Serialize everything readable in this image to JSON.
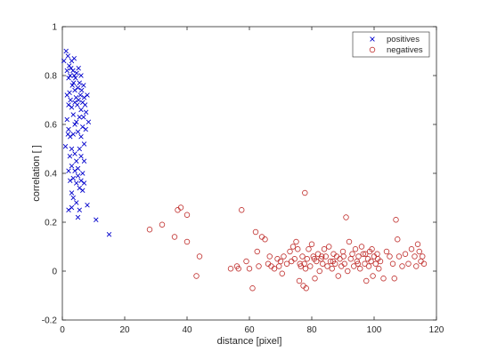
{
  "chart_data": {
    "type": "scatter",
    "xlabel": "distance [pixel]",
    "ylabel": "correlation [ ]",
    "xlim": [
      0,
      120
    ],
    "ylim": [
      -0.2,
      1
    ],
    "x_ticks": [
      "0",
      "20",
      "40",
      "60",
      "80",
      "100",
      "120"
    ],
    "y_ticks": [
      "-0.2",
      "0",
      "0.2",
      "0.4",
      "0.6",
      "0.8",
      "1"
    ],
    "grid": false,
    "legend_position": "top-right",
    "series": [
      {
        "name": "positives",
        "marker": "x",
        "color": "#0000cc",
        "points": [
          [
            0.5,
            0.86
          ],
          [
            1.2,
            0.9
          ],
          [
            1.5,
            0.82
          ],
          [
            1.8,
            0.88
          ],
          [
            2.0,
            0.79
          ],
          [
            2.2,
            0.84
          ],
          [
            2.5,
            0.8
          ],
          [
            2.8,
            0.83
          ],
          [
            3.0,
            0.86
          ],
          [
            3.2,
            0.76
          ],
          [
            3.4,
            0.82
          ],
          [
            3.6,
            0.77
          ],
          [
            3.8,
            0.8
          ],
          [
            4.0,
            0.74
          ],
          [
            4.2,
            0.79
          ],
          [
            4.4,
            0.71
          ],
          [
            4.6,
            0.81
          ],
          [
            4.8,
            0.68
          ],
          [
            5.0,
            0.75
          ],
          [
            5.2,
            0.7
          ],
          [
            5.5,
            0.77
          ],
          [
            5.8,
            0.72
          ],
          [
            6.0,
            0.66
          ],
          [
            6.2,
            0.74
          ],
          [
            6.5,
            0.69
          ],
          [
            6.8,
            0.63
          ],
          [
            7.0,
            0.71
          ],
          [
            7.3,
            0.68
          ],
          [
            7.6,
            0.65
          ],
          [
            8.0,
            0.72
          ],
          [
            8.4,
            0.61
          ],
          [
            2.3,
            0.73
          ],
          [
            2.6,
            0.7
          ],
          [
            3.0,
            0.67
          ],
          [
            3.5,
            0.64
          ],
          [
            4.0,
            0.69
          ],
          [
            4.5,
            0.61
          ],
          [
            5.0,
            0.57
          ],
          [
            5.5,
            0.63
          ],
          [
            6.0,
            0.55
          ],
          [
            6.5,
            0.59
          ],
          [
            7.0,
            0.52
          ],
          [
            1.5,
            0.62
          ],
          [
            2.0,
            0.58
          ],
          [
            2.5,
            0.55
          ],
          [
            3.0,
            0.5
          ],
          [
            3.5,
            0.56
          ],
          [
            4.0,
            0.48
          ],
          [
            4.5,
            0.45
          ],
          [
            5.0,
            0.42
          ],
          [
            5.5,
            0.5
          ],
          [
            6.0,
            0.47
          ],
          [
            6.5,
            0.4
          ],
          [
            7.0,
            0.45
          ],
          [
            1.0,
            0.51
          ],
          [
            1.8,
            0.56
          ],
          [
            2.4,
            0.47
          ],
          [
            3.0,
            0.43
          ],
          [
            3.5,
            0.38
          ],
          [
            4.0,
            0.41
          ],
          [
            4.5,
            0.36
          ],
          [
            5.0,
            0.39
          ],
          [
            5.5,
            0.34
          ],
          [
            6.0,
            0.37
          ],
          [
            6.5,
            0.33
          ],
          [
            7.0,
            0.36
          ],
          [
            2.0,
            0.41
          ],
          [
            2.5,
            0.37
          ],
          [
            3.0,
            0.32
          ],
          [
            3.5,
            0.3
          ],
          [
            4.5,
            0.28
          ],
          [
            5.5,
            0.25
          ],
          [
            2.0,
            0.25
          ],
          [
            3.0,
            0.26
          ],
          [
            5.0,
            0.22
          ],
          [
            8.0,
            0.27
          ],
          [
            10.8,
            0.21
          ],
          [
            15.0,
            0.15
          ],
          [
            1.5,
            0.72
          ],
          [
            2.0,
            0.68
          ],
          [
            4.0,
            0.6
          ],
          [
            6.0,
            0.8
          ],
          [
            7.5,
            0.58
          ],
          [
            3.8,
            0.87
          ],
          [
            5.2,
            0.83
          ],
          [
            6.8,
            0.76
          ]
        ]
      },
      {
        "name": "negatives",
        "marker": "o",
        "color": "#c0302e",
        "points": [
          [
            28.0,
            0.17
          ],
          [
            32.0,
            0.19
          ],
          [
            36.0,
            0.14
          ],
          [
            37.0,
            0.25
          ],
          [
            38.0,
            0.26
          ],
          [
            40.0,
            0.23
          ],
          [
            40.0,
            0.12
          ],
          [
            43.0,
            -0.02
          ],
          [
            44.0,
            0.06
          ],
          [
            54.0,
            0.01
          ],
          [
            56.0,
            0.02
          ],
          [
            56.5,
            0.01
          ],
          [
            57.5,
            0.25
          ],
          [
            59.0,
            0.04
          ],
          [
            61.0,
            -0.07
          ],
          [
            62.0,
            0.16
          ],
          [
            62.5,
            0.08
          ],
          [
            63.0,
            0.02
          ],
          [
            64.0,
            0.14
          ],
          [
            65.0,
            0.13
          ],
          [
            66.0,
            0.03
          ],
          [
            67.0,
            0.02
          ],
          [
            68.0,
            0.01
          ],
          [
            69.0,
            0.05
          ],
          [
            70.0,
            0.04
          ],
          [
            70.5,
            -0.01
          ],
          [
            71.0,
            0.06
          ],
          [
            72.0,
            0.03
          ],
          [
            73.0,
            0.08
          ],
          [
            74.0,
            0.1
          ],
          [
            74.5,
            0.05
          ],
          [
            75.0,
            0.12
          ],
          [
            75.5,
            0.09
          ],
          [
            76.0,
            -0.04
          ],
          [
            76.5,
            0.02
          ],
          [
            77.0,
            0.06
          ],
          [
            77.3,
            -0.06
          ],
          [
            77.6,
            0.03
          ],
          [
            77.8,
            0.32
          ],
          [
            78.0,
            0.01
          ],
          [
            78.2,
            -0.07
          ],
          [
            78.5,
            0.05
          ],
          [
            79.0,
            0.09
          ],
          [
            79.5,
            0.02
          ],
          [
            80.0,
            0.11
          ],
          [
            80.5,
            0.06
          ],
          [
            81.0,
            -0.03
          ],
          [
            81.5,
            0.04
          ],
          [
            82.0,
            0.07
          ],
          [
            82.5,
            0.0
          ],
          [
            83.0,
            0.05
          ],
          [
            83.5,
            0.03
          ],
          [
            84.0,
            0.09
          ],
          [
            84.5,
            0.06
          ],
          [
            85.0,
            0.02
          ],
          [
            85.5,
            0.1
          ],
          [
            86.0,
            0.04
          ],
          [
            86.5,
            0.01
          ],
          [
            87.0,
            0.07
          ],
          [
            87.5,
            0.03
          ],
          [
            88.0,
            0.06
          ],
          [
            88.5,
            -0.02
          ],
          [
            89.0,
            0.05
          ],
          [
            89.5,
            0.02
          ],
          [
            90.0,
            0.08
          ],
          [
            90.5,
            0.03
          ],
          [
            91.0,
            0.22
          ],
          [
            91.5,
            0.0
          ],
          [
            92.0,
            0.12
          ],
          [
            92.5,
            0.05
          ],
          [
            93.0,
            0.07
          ],
          [
            93.5,
            0.02
          ],
          [
            94.0,
            0.09
          ],
          [
            94.5,
            0.04
          ],
          [
            95.0,
            0.06
          ],
          [
            95.5,
            0.01
          ],
          [
            96.0,
            0.1
          ],
          [
            96.5,
            0.07
          ],
          [
            97.0,
            0.03
          ],
          [
            97.5,
            -0.04
          ],
          [
            98.0,
            0.05
          ],
          [
            98.3,
            0.02
          ],
          [
            98.6,
            0.08
          ],
          [
            99.0,
            0.04
          ],
          [
            99.3,
            0.09
          ],
          [
            99.6,
            -0.02
          ],
          [
            100.0,
            0.06
          ],
          [
            100.5,
            0.03
          ],
          [
            101.0,
            0.07
          ],
          [
            101.5,
            0.01
          ],
          [
            102.0,
            0.04
          ],
          [
            103.0,
            -0.03
          ],
          [
            104.0,
            0.08
          ],
          [
            105.0,
            0.06
          ],
          [
            106.0,
            0.03
          ],
          [
            106.5,
            -0.03
          ],
          [
            107.0,
            0.21
          ],
          [
            107.5,
            0.13
          ],
          [
            108.0,
            0.06
          ],
          [
            109.0,
            0.02
          ],
          [
            110.0,
            0.07
          ],
          [
            111.0,
            0.03
          ],
          [
            112.0,
            0.09
          ],
          [
            113.0,
            0.06
          ],
          [
            113.5,
            0.02
          ],
          [
            114.0,
            0.11
          ],
          [
            114.5,
            0.08
          ],
          [
            115.0,
            0.04
          ],
          [
            115.5,
            0.06
          ],
          [
            116.0,
            0.03
          ],
          [
            60.0,
            0.01
          ],
          [
            66.5,
            0.06
          ],
          [
            69.5,
            0.02
          ],
          [
            73.5,
            0.04
          ],
          [
            76.2,
            0.03
          ],
          [
            80.8,
            0.05
          ],
          [
            83.2,
            0.06
          ],
          [
            86.8,
            0.04
          ],
          [
            90.2,
            0.06
          ],
          [
            94.8,
            0.03
          ],
          [
            97.2,
            0.07
          ],
          [
            101.2,
            0.05
          ]
        ]
      }
    ]
  }
}
